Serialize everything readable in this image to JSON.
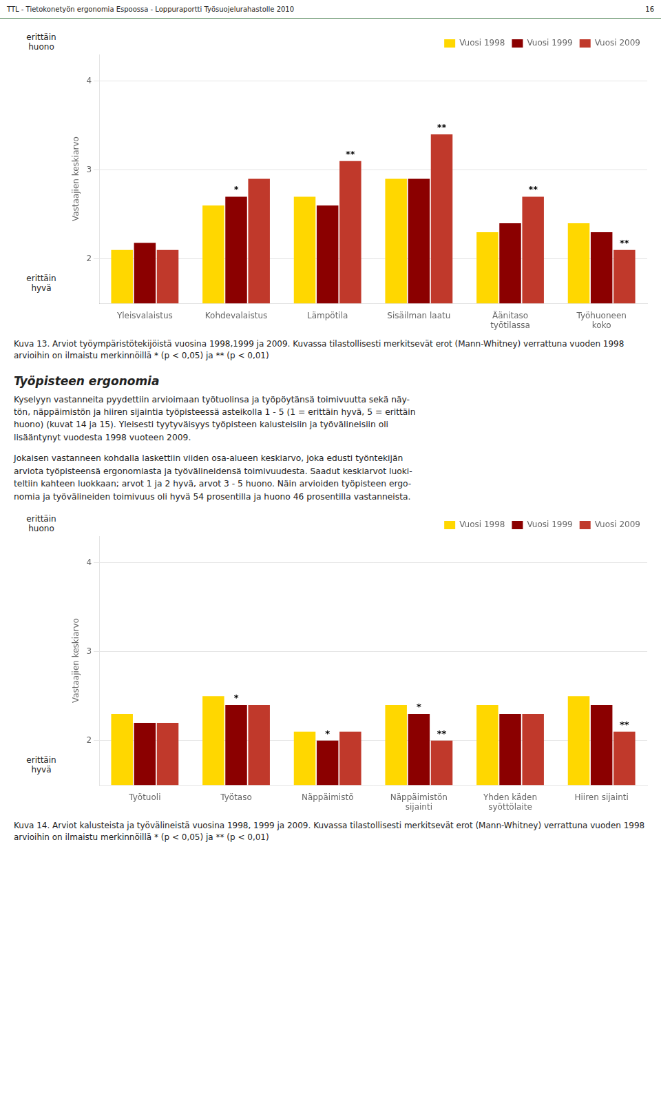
{
  "header": "TTL - Tietokonetyön ergonomia Espoossa - Loppuraportti Työsuojelurahastolle 2010",
  "page_number": "16",
  "section_title": "Työpisteen ergonomia",
  "body_text": [
    "Kyselyyn vastanneita pyydettiin arvioimaan työtuolinsa ja työpöytänsä toimivuutta sekä näy-\ntön, näppäimistön ja hiiren sijaintia työpisteessä asteikolla 1 - 5 (1 = erittäin hyvä, 5 = erittäin\nhuono) (kuvat 14 ja 15). Yleisesti tyytyväisyys työpisteen kalusteisiin ja työvälineisiin oli\nlisääntynyt vuodesta 1998 vuoteen 2009.",
    "Jokaisen vastanneen kohdalla laskettiin viiden osa-alueen keskiarvo, joka edusti työntekijän\narviota työpisteensä ergonomiasta ja työvälineidensä toimivuudesta. Saadut keskiarvot luoki-\nteltiin kahteen luokkaan; arvot 1 ja 2 hyvä, arvot 3 - 5 huono. Näin arvioiden työpisteen ergo-\nnomia ja työvälineiden toimivuus oli hyvä 54 prosentilla ja huono 46 prosentilla vastanneista."
  ],
  "chart_data": [
    {
      "type": "bar",
      "categories": [
        "Yleisvalaistus",
        "Kohdevalaistus",
        "Lämpötila",
        "Sisäilman laatu",
        "Äänitaso\ntyötilassa",
        "Työhuoneen\nkoko"
      ],
      "series": [
        {
          "name": "Vuosi 1998",
          "color": "#FFD700",
          "values": [
            2.1,
            2.6,
            2.7,
            2.9,
            2.3,
            2.4
          ]
        },
        {
          "name": "Vuosi 1999",
          "color": "#8B0000",
          "values": [
            2.18,
            2.7,
            2.6,
            2.9,
            2.4,
            2.3
          ]
        },
        {
          "name": "Vuosi 2009",
          "color": "#C0392B",
          "values": [
            2.1,
            2.9,
            3.1,
            3.4,
            2.7,
            2.1
          ]
        }
      ],
      "annotations": [
        {
          "series": "Vuosi 1999",
          "category": "Kohdevalaistus",
          "text": "*"
        },
        {
          "series": "Vuosi 2009",
          "category": "Lämpötila",
          "text": "**"
        },
        {
          "series": "Vuosi 2009",
          "category": "Sisäilman laatu",
          "text": "**"
        },
        {
          "series": "Vuosi 2009",
          "category": "Äänitaso\ntyötilassa",
          "text": "**"
        },
        {
          "series": "Vuosi 2009",
          "category": "Työhuoneen\nkoko",
          "text": "**"
        }
      ],
      "ylabel": "Vastaajien keskiarvo",
      "y_top_label": "erittäin\nhuono",
      "y_bottom_label": "erittäin\nhyvä",
      "ylim": [
        1.5,
        4.3
      ],
      "yticks": [
        2,
        3,
        4
      ],
      "grid": true,
      "legend": "upper right",
      "caption": "Kuva 13. Arviot työympäristötekijöistä vuosina 1998,1999 ja 2009. Kuvassa tilastollisesti merkitsevät erot (Mann-Whitney) verrattuna vuoden 1998 arvioihin on ilmaistu merkinnöillä * (p < 0,05) ja ** (p < 0,01)"
    },
    {
      "type": "bar",
      "categories": [
        "Työtuoli",
        "Työtaso",
        "Näppäimistö",
        "Näppäimistön\nsijainti",
        "Yhden käden\nsyöttölaite",
        "Hiiren sijainti"
      ],
      "series": [
        {
          "name": "Vuosi 1998",
          "color": "#FFD700",
          "values": [
            2.3,
            2.5,
            2.1,
            2.4,
            2.4,
            2.5
          ]
        },
        {
          "name": "Vuosi 1999",
          "color": "#8B0000",
          "values": [
            2.2,
            2.4,
            2.0,
            2.3,
            2.3,
            2.4
          ]
        },
        {
          "name": "Vuosi 2009",
          "color": "#C0392B",
          "values": [
            2.2,
            2.4,
            2.1,
            2.0,
            2.3,
            2.1
          ]
        }
      ],
      "annotations": [
        {
          "series": "Vuosi 1999",
          "category": "Työtaso",
          "text": "*"
        },
        {
          "series": "Vuosi 1999",
          "category": "Näppäimistö",
          "text": "*"
        },
        {
          "series": "Vuosi 1999",
          "category": "Näppäimistön\nsijainti",
          "text": "*"
        },
        {
          "series": "Vuosi 2009",
          "category": "Näppäimistön\nsijainti",
          "text": "**"
        },
        {
          "series": "Vuosi 2009",
          "category": "Hiiren sijainti",
          "text": "**"
        }
      ],
      "ylabel": "Vastaajien keskiarvo",
      "y_top_label": "erittäin\nhuono",
      "y_bottom_label": "erittäin\nhyvä",
      "ylim": [
        1.5,
        4.3
      ],
      "yticks": [
        2,
        3,
        4
      ],
      "grid": true,
      "legend": "upper right",
      "caption": "Kuva 14. Arviot kalusteista ja työvälineistä vuosina 1998, 1999 ja 2009. Kuvassa tilastollisesti merkitsevät erot (Mann-Whitney) verrattuna vuoden 1998 arvioihin on ilmaistu merkinnöillä * (p < 0,05) ja ** (p < 0,01)"
    }
  ]
}
